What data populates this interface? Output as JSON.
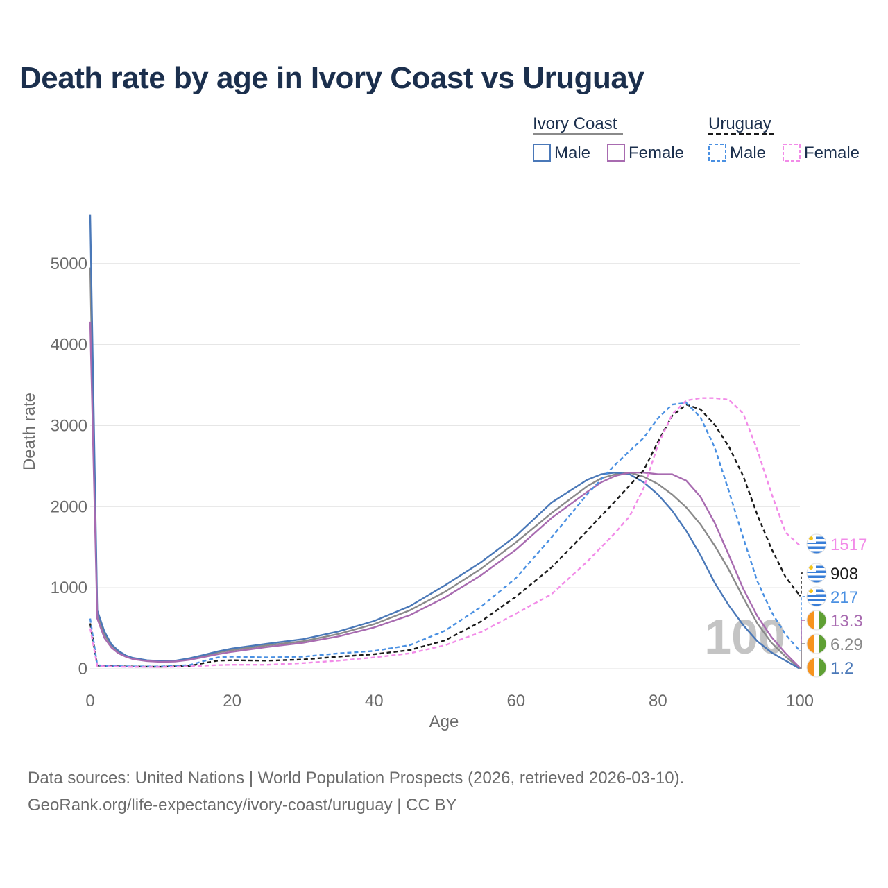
{
  "title": "Death rate by age in Ivory Coast vs Uruguay",
  "legend": {
    "groups": [
      {
        "label": "Ivory Coast",
        "line_style": "solid",
        "color": "#8a8a8a"
      },
      {
        "label": "Uruguay",
        "line_style": "dashed",
        "color": "#1a1a1a"
      }
    ],
    "items": [
      {
        "label": "Male",
        "color": "#4a78b8",
        "style": "solid"
      },
      {
        "label": "Female",
        "color": "#a86bb0",
        "style": "solid"
      },
      {
        "label": "Male",
        "color": "#4a90e2",
        "style": "dashed"
      },
      {
        "label": "Female",
        "color": "#f28be8",
        "style": "dashed"
      }
    ]
  },
  "source": {
    "line1": "Data sources: United Nations | World Population Prospects (2026, retrieved 2026-03-10).",
    "line2": "GeoRank.org/life-expectancy/ivory-coast/uruguay | CC BY"
  },
  "chart_data": {
    "type": "line",
    "title": "Death rate by age in Ivory Coast vs Uruguay",
    "xlabel": "Age",
    "ylabel": "Death rate",
    "xlim": [
      0,
      100
    ],
    "ylim": [
      0,
      5500
    ],
    "xticks": [
      "0",
      "20",
      "40",
      "60",
      "80",
      "100"
    ],
    "yticks": [
      "0",
      "1000",
      "2000",
      "3000",
      "4000",
      "5000"
    ],
    "grid": true,
    "watermark": "100",
    "end_labels": [
      {
        "series": "Uruguay Female",
        "value": "1517",
        "color": "#f28be8",
        "flag": "uruguay-flag-icon"
      },
      {
        "series": "Uruguay Total",
        "value": "908",
        "color": "#1a1a1a",
        "flag": "uruguay-flag-icon"
      },
      {
        "series": "Uruguay Male",
        "value": "217",
        "color": "#4a90e2",
        "flag": "uruguay-flag-icon"
      },
      {
        "series": "Ivory Coast Female",
        "value": "13.3",
        "color": "#a86bb0",
        "flag": "ivory-coast-flag-icon"
      },
      {
        "series": "Ivory Coast Total",
        "value": "6.29",
        "color": "#8a8a8a",
        "flag": "ivory-coast-flag-icon"
      },
      {
        "series": "Ivory Coast Male",
        "value": "1.2",
        "color": "#4a78b8",
        "flag": "ivory-coast-flag-icon"
      }
    ],
    "series": [
      {
        "name": "Ivory Coast Total",
        "color": "#8a8a8a",
        "dash": false,
        "x": [
          0,
          1,
          2,
          3,
          4,
          5,
          6,
          8,
          10,
          12,
          14,
          16,
          18,
          20,
          25,
          30,
          35,
          40,
          45,
          50,
          55,
          60,
          65,
          70,
          72,
          74,
          76,
          78,
          80,
          82,
          84,
          86,
          88,
          90,
          92,
          94,
          96,
          98,
          100
        ],
        "y": [
          4950,
          660,
          420,
          290,
          210,
          160,
          130,
          100,
          90,
          95,
          120,
          160,
          200,
          230,
          290,
          340,
          430,
          550,
          720,
          950,
          1230,
          1560,
          1920,
          2250,
          2350,
          2400,
          2420,
          2370,
          2280,
          2150,
          1990,
          1780,
          1520,
          1220,
          880,
          560,
          320,
          150,
          6
        ]
      },
      {
        "name": "Ivory Coast Male",
        "color": "#4a78b8",
        "dash": false,
        "x": [
          0,
          1,
          2,
          3,
          4,
          5,
          6,
          8,
          10,
          12,
          14,
          16,
          18,
          20,
          25,
          30,
          35,
          40,
          45,
          50,
          55,
          60,
          65,
          70,
          72,
          74,
          76,
          78,
          80,
          82,
          84,
          86,
          88,
          90,
          92,
          94,
          96,
          98,
          100
        ],
        "y": [
          5600,
          720,
          460,
          300,
          220,
          165,
          135,
          105,
          95,
          100,
          130,
          170,
          215,
          250,
          310,
          365,
          460,
          590,
          770,
          1030,
          1310,
          1640,
          2050,
          2330,
          2400,
          2420,
          2400,
          2300,
          2150,
          1950,
          1700,
          1400,
          1060,
          780,
          540,
          340,
          200,
          100,
          1.2
        ]
      },
      {
        "name": "Ivory Coast Female",
        "color": "#a86bb0",
        "dash": false,
        "x": [
          0,
          1,
          2,
          3,
          4,
          5,
          6,
          8,
          10,
          12,
          14,
          16,
          18,
          20,
          25,
          30,
          35,
          40,
          45,
          50,
          55,
          60,
          65,
          70,
          72,
          74,
          76,
          78,
          80,
          82,
          84,
          86,
          88,
          90,
          92,
          94,
          96,
          98,
          100
        ],
        "y": [
          4280,
          620,
          380,
          260,
          190,
          150,
          120,
          95,
          85,
          90,
          110,
          145,
          180,
          210,
          270,
          320,
          400,
          510,
          660,
          880,
          1150,
          1470,
          1860,
          2180,
          2300,
          2380,
          2420,
          2420,
          2400,
          2400,
          2320,
          2120,
          1800,
          1400,
          990,
          650,
          390,
          190,
          13
        ]
      },
      {
        "name": "Uruguay Total",
        "color": "#1a1a1a",
        "dash": true,
        "x": [
          0,
          1,
          2,
          5,
          10,
          14,
          16,
          18,
          20,
          25,
          30,
          35,
          40,
          45,
          50,
          55,
          60,
          65,
          70,
          74,
          78,
          80,
          82,
          84,
          86,
          88,
          90,
          92,
          94,
          96,
          98,
          100
        ],
        "y": [
          560,
          40,
          35,
          28,
          25,
          35,
          70,
          100,
          105,
          100,
          115,
          150,
          180,
          230,
          350,
          580,
          890,
          1250,
          1700,
          2070,
          2450,
          2800,
          3120,
          3260,
          3200,
          3010,
          2740,
          2380,
          1900,
          1480,
          1130,
          900
        ]
      },
      {
        "name": "Uruguay Male",
        "color": "#4a90e2",
        "dash": true,
        "x": [
          0,
          1,
          2,
          5,
          10,
          14,
          16,
          18,
          20,
          25,
          30,
          35,
          40,
          45,
          50,
          55,
          60,
          65,
          70,
          74,
          78,
          80,
          82,
          84,
          86,
          88,
          90,
          92,
          94,
          96,
          98,
          100
        ],
        "y": [
          620,
          45,
          38,
          30,
          28,
          45,
          95,
          140,
          150,
          140,
          150,
          190,
          220,
          290,
          470,
          760,
          1120,
          1620,
          2150,
          2520,
          2850,
          3090,
          3260,
          3280,
          3100,
          2730,
          2190,
          1620,
          1080,
          700,
          420,
          220
        ]
      },
      {
        "name": "Uruguay Female",
        "color": "#f28be8",
        "dash": true,
        "x": [
          0,
          1,
          2,
          5,
          10,
          14,
          16,
          18,
          20,
          25,
          30,
          35,
          40,
          45,
          50,
          55,
          60,
          65,
          70,
          74,
          76,
          78,
          80,
          82,
          84,
          86,
          88,
          90,
          92,
          94,
          96,
          98,
          100
        ],
        "y": [
          500,
          35,
          30,
          24,
          22,
          28,
          38,
          45,
          50,
          50,
          70,
          100,
          140,
          190,
          290,
          450,
          680,
          920,
          1320,
          1680,
          1880,
          2230,
          2760,
          3140,
          3310,
          3340,
          3340,
          3320,
          3150,
          2700,
          2160,
          1680,
          1520
        ]
      }
    ]
  }
}
